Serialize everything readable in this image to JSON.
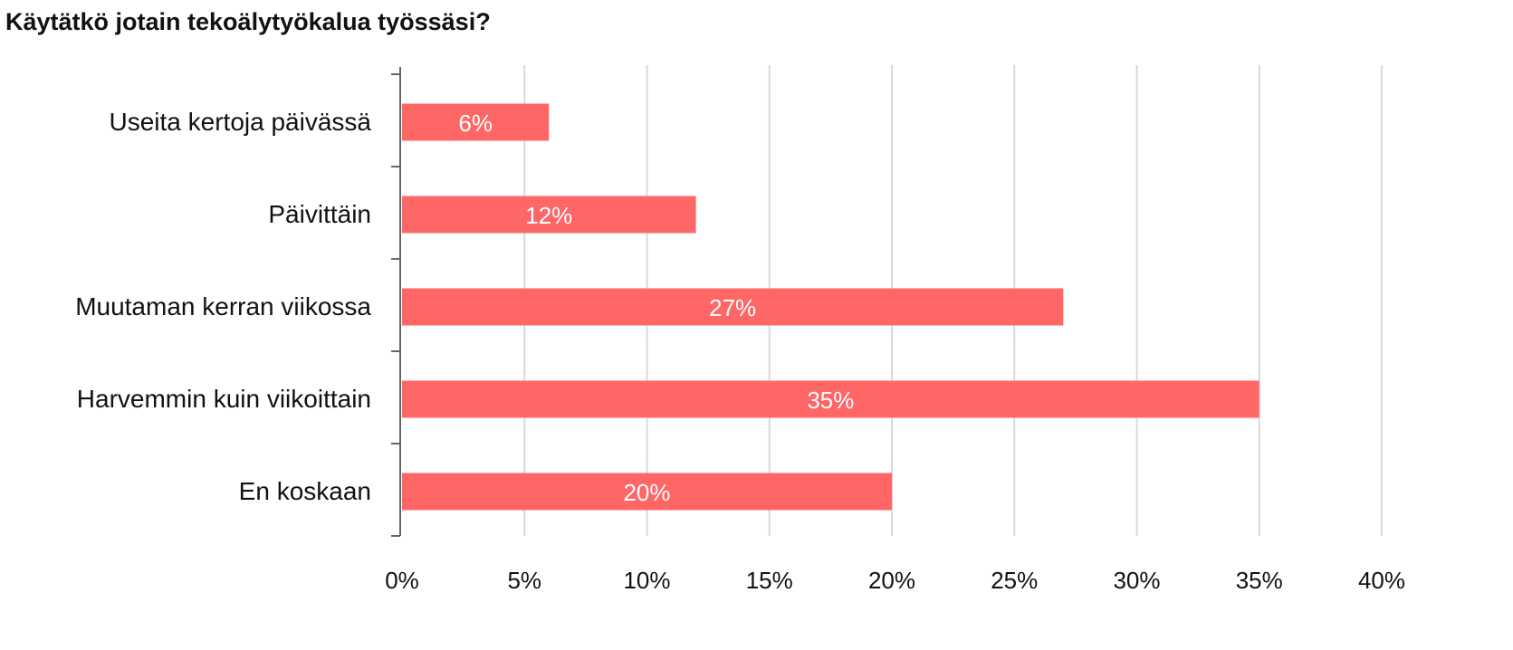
{
  "chart_data": {
    "type": "bar",
    "orientation": "horizontal",
    "title": "Käytätkö jotain tekoälytyökalua työssäsi?",
    "categories": [
      "Useita kertoja päivässä",
      "Päivittäin",
      "Muutaman kerran viikossa",
      "Harvemmin kuin viikoittain",
      "En koskaan"
    ],
    "values": [
      6,
      12,
      27,
      35,
      20
    ],
    "data_labels": [
      "6%",
      "12%",
      "27%",
      "35%",
      "20%"
    ],
    "xlim": [
      0,
      40
    ],
    "x_ticks": [
      0,
      5,
      10,
      15,
      20,
      25,
      30,
      35,
      40
    ],
    "x_tick_labels": [
      "0%",
      "5%",
      "10%",
      "15%",
      "20%",
      "25%",
      "30%",
      "35%",
      "40%"
    ],
    "xlabel": "",
    "ylabel": "",
    "grid": "vertical",
    "legend": "none",
    "colors": {
      "bar": "#ff6666",
      "data_label": "#ffffff",
      "grid": "#d9d9d9",
      "axis": "#666666",
      "text": "#111111"
    }
  }
}
